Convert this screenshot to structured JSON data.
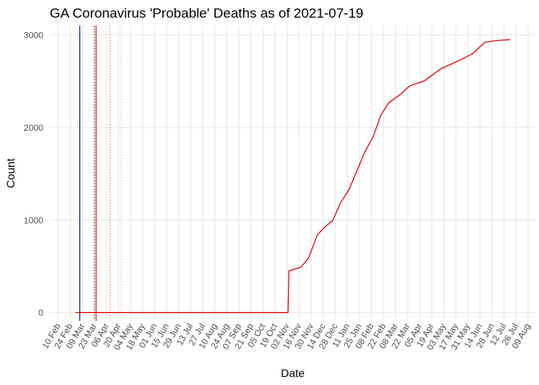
{
  "chart_data": {
    "type": "line",
    "title": "GA Coronavirus 'Probable' Deaths as of 2021-07-19",
    "x_label": "Date",
    "y_label": "Count",
    "xlim": [
      "2020-01-31",
      "2021-08-18"
    ],
    "ylim": [
      -90,
      3100
    ],
    "yticks": [
      0,
      1000,
      2000,
      3000
    ],
    "xticks": [
      {
        "value": "2020-02-10",
        "label": "10 Feb"
      },
      {
        "value": "2020-02-24",
        "label": "24 Feb"
      },
      {
        "value": "2020-03-09",
        "label": "09 Mar"
      },
      {
        "value": "2020-03-23",
        "label": "23 Mar"
      },
      {
        "value": "2020-04-06",
        "label": "06 Apr"
      },
      {
        "value": "2020-04-20",
        "label": "20 Apr"
      },
      {
        "value": "2020-05-04",
        "label": "04 May"
      },
      {
        "value": "2020-05-18",
        "label": "18 May"
      },
      {
        "value": "2020-06-01",
        "label": "01 Jun"
      },
      {
        "value": "2020-06-15",
        "label": "15 Jun"
      },
      {
        "value": "2020-06-29",
        "label": "29 Jun"
      },
      {
        "value": "2020-07-13",
        "label": "13 Jul"
      },
      {
        "value": "2020-07-27",
        "label": "27 Jul"
      },
      {
        "value": "2020-08-10",
        "label": "10 Aug"
      },
      {
        "value": "2020-08-24",
        "label": "24 Aug"
      },
      {
        "value": "2020-09-07",
        "label": "07 Sep"
      },
      {
        "value": "2020-09-21",
        "label": "21 Sep"
      },
      {
        "value": "2020-10-05",
        "label": "05 Oct"
      },
      {
        "value": "2020-10-19",
        "label": "19 Oct"
      },
      {
        "value": "2020-11-02",
        "label": "02 Nov"
      },
      {
        "value": "2020-11-16",
        "label": "16 Nov"
      },
      {
        "value": "2020-11-30",
        "label": "30 Nov"
      },
      {
        "value": "2020-12-14",
        "label": "14 Dec"
      },
      {
        "value": "2020-12-28",
        "label": "28 Dec"
      },
      {
        "value": "2021-01-11",
        "label": "11 Jan"
      },
      {
        "value": "2021-01-25",
        "label": "25 Jan"
      },
      {
        "value": "2021-02-08",
        "label": "08 Feb"
      },
      {
        "value": "2021-02-22",
        "label": "22 Feb"
      },
      {
        "value": "2021-03-08",
        "label": "08 Mar"
      },
      {
        "value": "2021-03-22",
        "label": "22 Mar"
      },
      {
        "value": "2021-04-05",
        "label": "05 Apr"
      },
      {
        "value": "2021-04-19",
        "label": "19 Apr"
      },
      {
        "value": "2021-05-03",
        "label": "03 May"
      },
      {
        "value": "2021-05-17",
        "label": "17 May"
      },
      {
        "value": "2021-05-31",
        "label": "31 May"
      },
      {
        "value": "2021-06-14",
        "label": "14 Jun"
      },
      {
        "value": "2021-06-28",
        "label": "28 Jun"
      },
      {
        "value": "2021-07-12",
        "label": "12 Jul"
      },
      {
        "value": "2021-07-26",
        "label": "26 Jul"
      },
      {
        "value": "2021-08-09",
        "label": "09 Aug"
      }
    ],
    "grid": true,
    "vlines": [
      {
        "x": "2020-03-06",
        "color": "#00008b",
        "dash": false
      },
      {
        "x": "2020-03-23",
        "color": "#8b0000",
        "dash": true
      },
      {
        "x": "2020-03-25",
        "color": "#cc0000",
        "dash": false
      },
      {
        "x": "2020-04-10",
        "color": "#e0707a",
        "dash": true
      },
      {
        "x": "2020-04-23",
        "color": "#f4b6c0",
        "dash": true
      }
    ],
    "series": [
      {
        "color": "#e00000",
        "x": [
          "2020-03-01",
          "2020-11-03",
          "2020-11-04",
          "2020-11-18",
          "2020-11-27",
          "2020-12-07",
          "2020-12-16",
          "2020-12-25",
          "2021-01-03",
          "2021-01-13",
          "2021-01-22",
          "2021-01-31",
          "2021-02-10",
          "2021-02-19",
          "2021-02-28",
          "2021-03-14",
          "2021-03-24",
          "2021-04-11",
          "2021-04-30",
          "2021-05-19",
          "2021-06-06",
          "2021-06-20",
          "2021-07-04",
          "2021-07-19"
        ],
        "values": [
          0,
          0,
          450,
          490,
          590,
          840,
          925,
          995,
          1185,
          1330,
          1530,
          1730,
          1900,
          2135,
          2265,
          2360,
          2447,
          2507,
          2637,
          2715,
          2800,
          2922,
          2940,
          2948
        ]
      }
    ]
  }
}
